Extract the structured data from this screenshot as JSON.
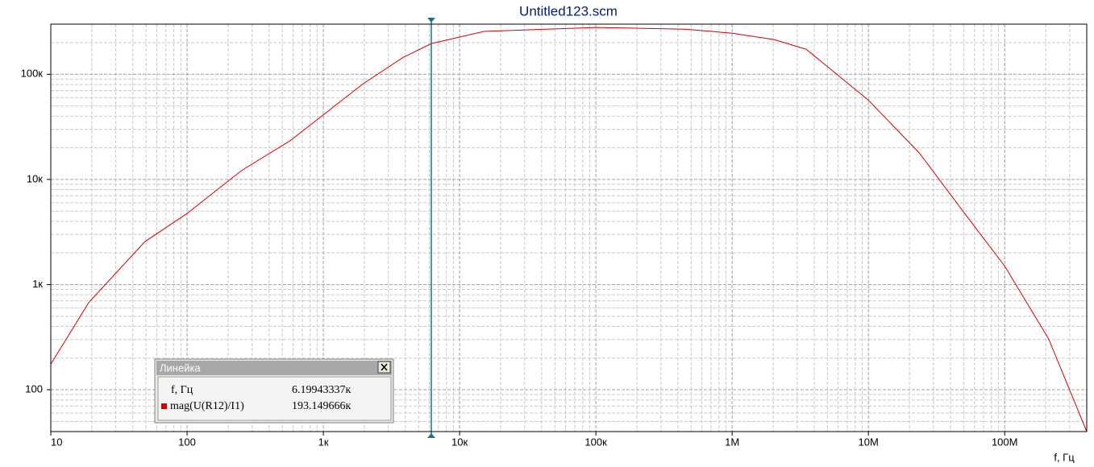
{
  "chart_data": {
    "type": "line",
    "title": "Untitled123.scm",
    "x_label": "f, Гц",
    "xscale": "log",
    "yscale": "log",
    "grid": true,
    "xlim": [
      10,
      400000000
    ],
    "ylim": [
      40,
      300000
    ],
    "xticks": [
      10,
      100,
      {
        "value": 1000,
        "label": "1к"
      },
      {
        "value": 10000,
        "label": "10к"
      },
      {
        "value": 100000,
        "label": "100к"
      },
      {
        "value": 1000000,
        "label": "1M"
      },
      {
        "value": 10000000,
        "label": "10M"
      },
      {
        "value": 100000000,
        "label": "100M"
      }
    ],
    "yticks": [
      100,
      {
        "value": 1000,
        "label": "1к"
      },
      {
        "value": 10000,
        "label": "10к"
      },
      {
        "value": 100000,
        "label": "100к"
      }
    ],
    "x": [
      10,
      19,
      49,
      100,
      252,
      572,
      1000,
      1950,
      3860,
      6200,
      15100,
      100000,
      454000,
      1000000,
      2030000,
      3500000,
      10000000,
      23600000,
      53500000,
      100000000,
      210000000,
      400000000
    ],
    "series": [
      {
        "name": "mag(U(R12)/I1)",
        "color": "#d40000",
        "values": [
          175,
          676,
          2560,
          4750,
          12200,
          23400,
          41200,
          81000,
          145000,
          196000,
          256000,
          279000,
          269000,
          246000,
          214000,
          173000,
          56700,
          17900,
          4350,
          1500,
          305,
          40
        ]
      }
    ],
    "cursor": {
      "panel_title": "Линейка",
      "x_name": "f, Гц",
      "color": "#1f7090",
      "x": {
        "value": 6199.43337,
        "label": "6.19943337к"
      },
      "y": {
        "value": 193149.666,
        "label": "193.149666к"
      }
    }
  }
}
